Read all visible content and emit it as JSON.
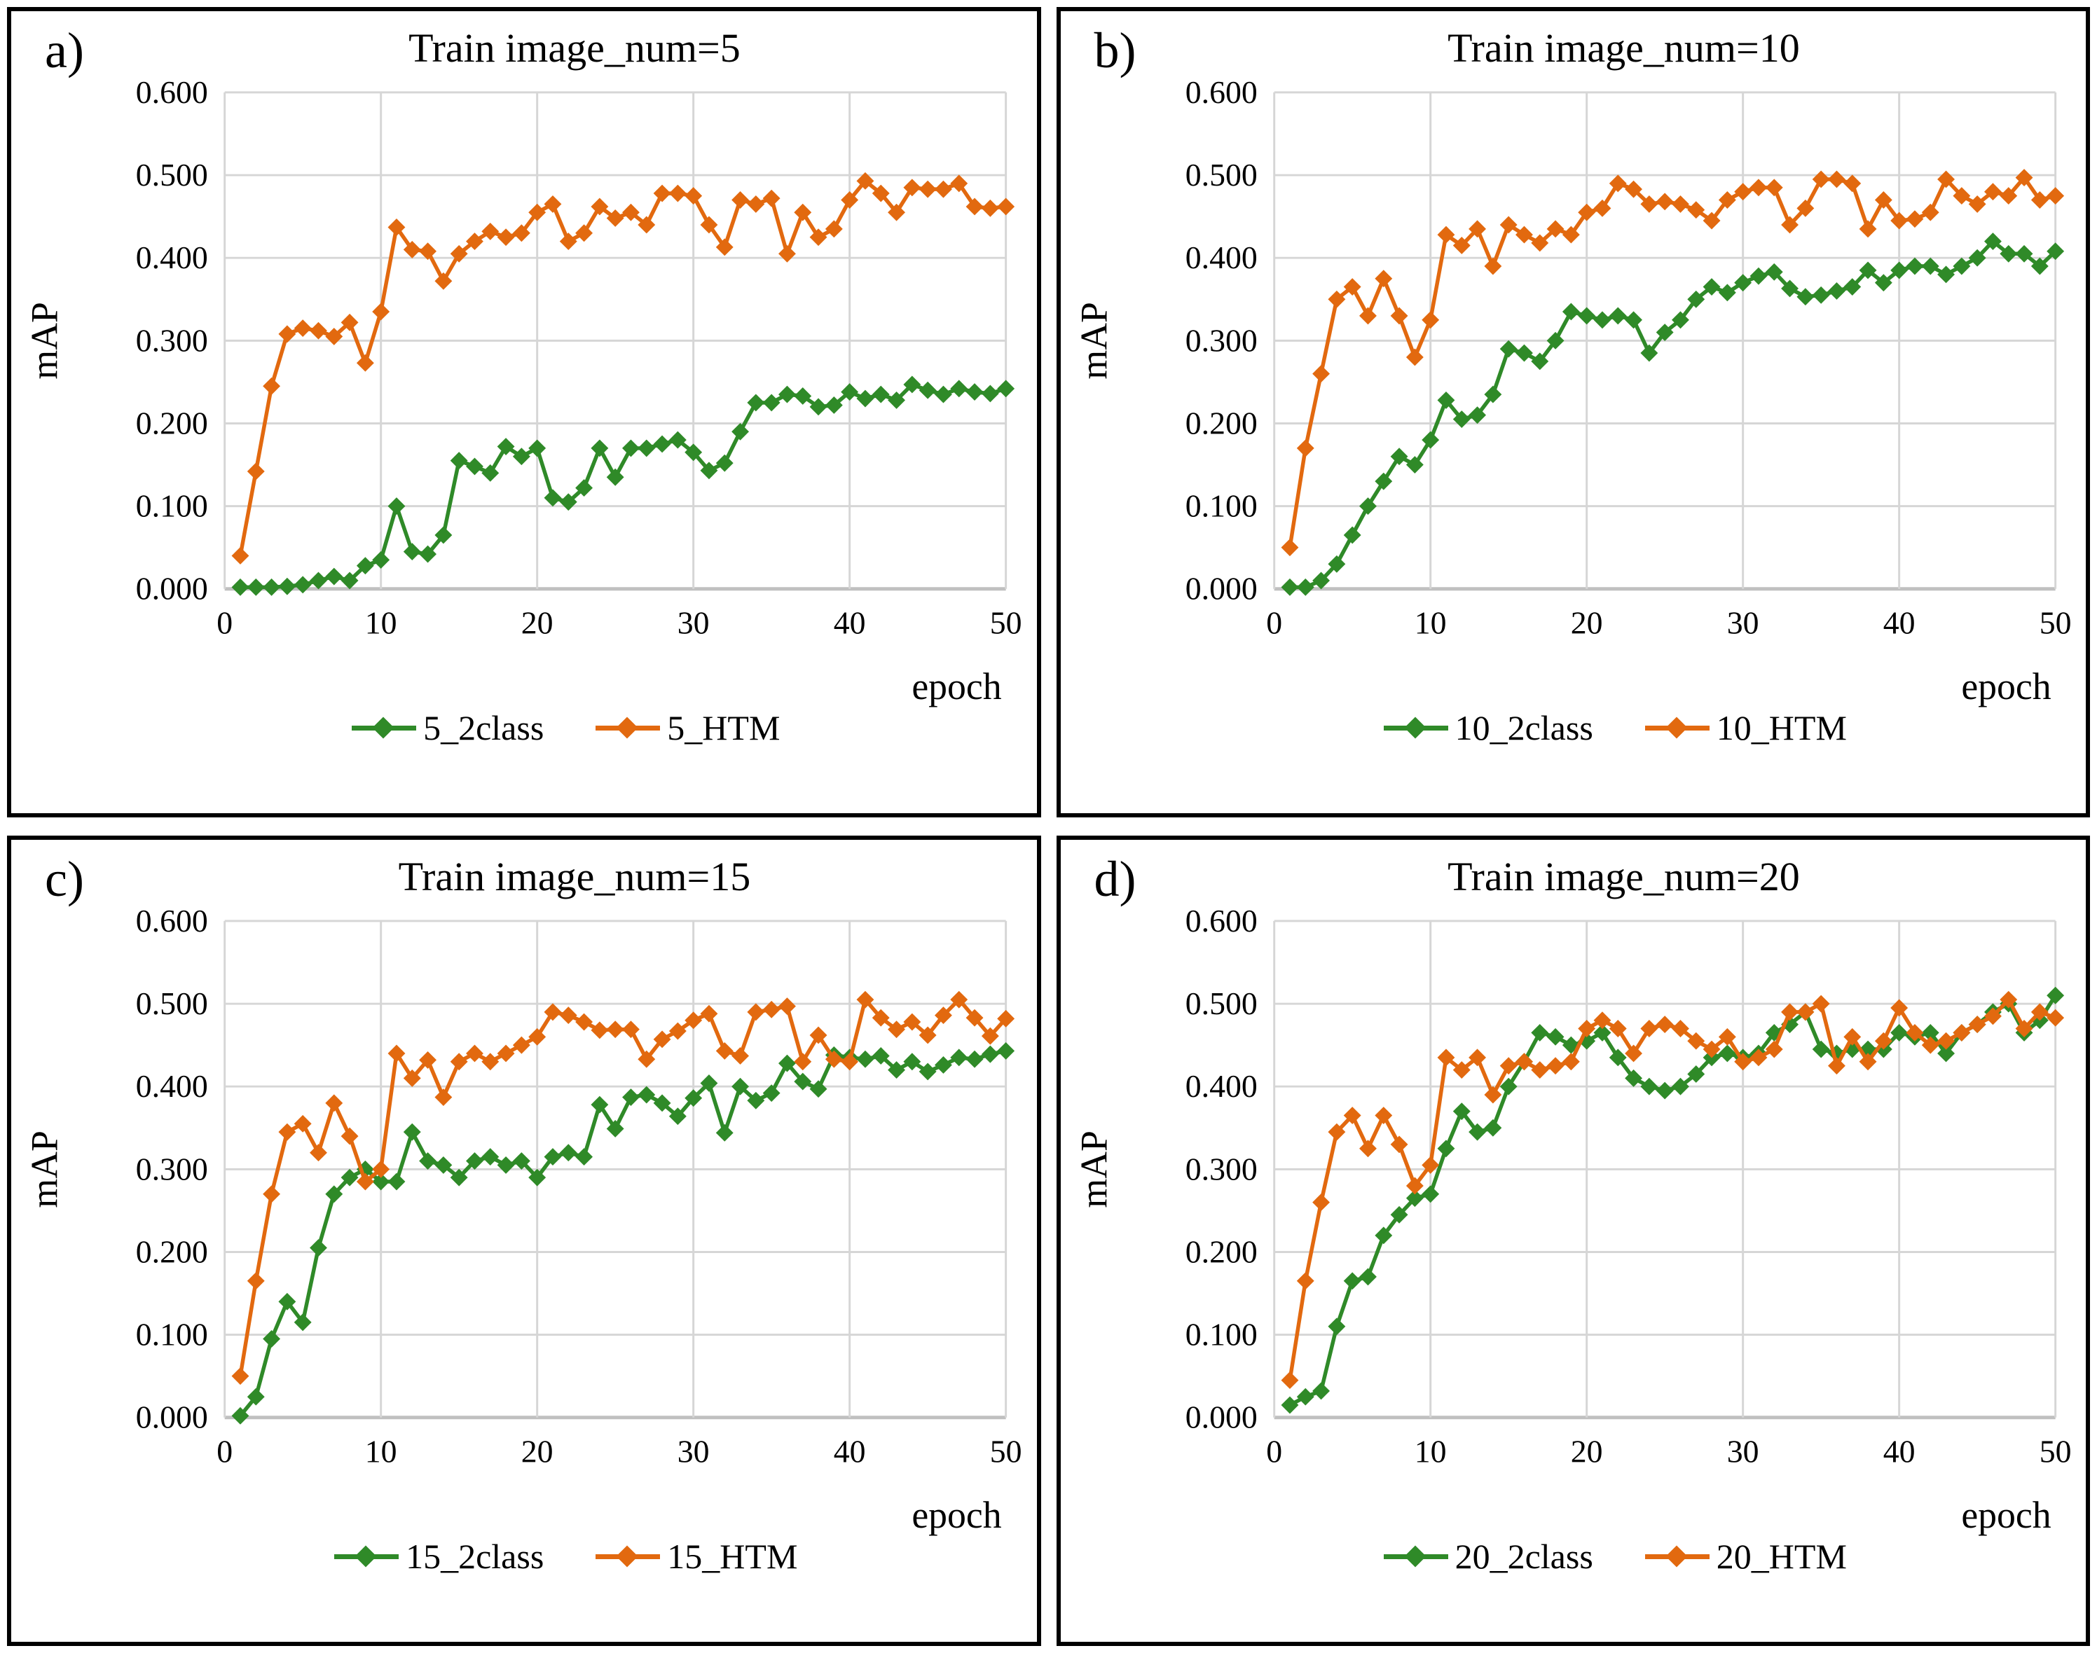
{
  "style": {
    "background": "#FFFFFF",
    "panel_border": "#000000",
    "grid_color": "#D6D6D6",
    "axis_color": "#C0C0C0",
    "text_color": "#000000",
    "green_series": "#2F8A28",
    "orange_series": "#E2690F"
  },
  "chart_data": [
    {
      "id": "a",
      "letter": "a)",
      "title": "Train image_num=5",
      "type": "line",
      "xlabel": "epoch",
      "ylabel": "mAP",
      "xlim": [
        0,
        50
      ],
      "ylim": [
        0,
        0.6
      ],
      "xticks": [
        0,
        10,
        20,
        30,
        40,
        50
      ],
      "yticks": [
        "0.000",
        "0.100",
        "0.200",
        "0.300",
        "0.400",
        "0.500",
        "0.600"
      ],
      "ytick_step": 0.1,
      "x_start": 1,
      "x_step": 1,
      "grid": true,
      "legend_position": "bottom",
      "series": [
        {
          "name": "5_2class",
          "color": "#2F8A28",
          "values": [
            0.002,
            0.002,
            0.002,
            0.003,
            0.005,
            0.01,
            0.015,
            0.01,
            0.028,
            0.035,
            0.1,
            0.045,
            0.042,
            0.065,
            0.155,
            0.148,
            0.14,
            0.172,
            0.16,
            0.17,
            0.11,
            0.105,
            0.122,
            0.17,
            0.135,
            0.17,
            0.17,
            0.175,
            0.18,
            0.165,
            0.143,
            0.152,
            0.19,
            0.225,
            0.225,
            0.235,
            0.233,
            0.22,
            0.222,
            0.238,
            0.23,
            0.235,
            0.228,
            0.247,
            0.24,
            0.235,
            0.242,
            0.238,
            0.236,
            0.242
          ]
        },
        {
          "name": "5_HTM",
          "color": "#E2690F",
          "values": [
            0.04,
            0.142,
            0.245,
            0.308,
            0.315,
            0.312,
            0.305,
            0.322,
            0.273,
            0.335,
            0.437,
            0.41,
            0.408,
            0.372,
            0.405,
            0.42,
            0.432,
            0.425,
            0.43,
            0.455,
            0.465,
            0.42,
            0.43,
            0.462,
            0.448,
            0.455,
            0.44,
            0.478,
            0.478,
            0.475,
            0.44,
            0.413,
            0.47,
            0.465,
            0.472,
            0.405,
            0.455,
            0.425,
            0.435,
            0.47,
            0.493,
            0.478,
            0.455,
            0.485,
            0.483,
            0.483,
            0.49,
            0.462,
            0.46,
            0.462
          ]
        }
      ]
    },
    {
      "id": "b",
      "letter": "b)",
      "title": "Train image_num=10",
      "type": "line",
      "xlabel": "epoch",
      "ylabel": "mAP",
      "xlim": [
        0,
        50
      ],
      "ylim": [
        0,
        0.6
      ],
      "xticks": [
        0,
        10,
        20,
        30,
        40,
        50
      ],
      "yticks": [
        "0.000",
        "0.100",
        "0.200",
        "0.300",
        "0.400",
        "0.500",
        "0.600"
      ],
      "ytick_step": 0.1,
      "x_start": 1,
      "x_step": 1,
      "grid": true,
      "legend_position": "bottom",
      "series": [
        {
          "name": "10_2class",
          "color": "#2F8A28",
          "values": [
            0.002,
            0.002,
            0.01,
            0.03,
            0.065,
            0.1,
            0.13,
            0.16,
            0.15,
            0.18,
            0.228,
            0.205,
            0.21,
            0.235,
            0.29,
            0.285,
            0.275,
            0.3,
            0.335,
            0.33,
            0.325,
            0.33,
            0.325,
            0.285,
            0.31,
            0.325,
            0.35,
            0.365,
            0.358,
            0.37,
            0.378,
            0.383,
            0.363,
            0.353,
            0.355,
            0.36,
            0.365,
            0.385,
            0.37,
            0.385,
            0.39,
            0.39,
            0.38,
            0.39,
            0.4,
            0.42,
            0.405,
            0.405,
            0.39,
            0.408
          ]
        },
        {
          "name": "10_HTM",
          "color": "#E2690F",
          "values": [
            0.05,
            0.17,
            0.26,
            0.35,
            0.365,
            0.33,
            0.375,
            0.33,
            0.28,
            0.325,
            0.428,
            0.415,
            0.435,
            0.39,
            0.44,
            0.428,
            0.418,
            0.435,
            0.428,
            0.455,
            0.46,
            0.49,
            0.483,
            0.465,
            0.468,
            0.465,
            0.458,
            0.445,
            0.47,
            0.48,
            0.485,
            0.485,
            0.44,
            0.46,
            0.495,
            0.495,
            0.49,
            0.435,
            0.47,
            0.445,
            0.447,
            0.455,
            0.495,
            0.475,
            0.465,
            0.48,
            0.475,
            0.497,
            0.47,
            0.475
          ]
        }
      ]
    },
    {
      "id": "c",
      "letter": "c)",
      "title": "Train image_num=15",
      "type": "line",
      "xlabel": "epoch",
      "ylabel": "mAP",
      "xlim": [
        0,
        50
      ],
      "ylim": [
        0,
        0.6
      ],
      "xticks": [
        0,
        10,
        20,
        30,
        40,
        50
      ],
      "yticks": [
        "0.000",
        "0.100",
        "0.200",
        "0.300",
        "0.400",
        "0.500",
        "0.600"
      ],
      "ytick_step": 0.1,
      "x_start": 1,
      "x_step": 1,
      "grid": true,
      "legend_position": "bottom",
      "series": [
        {
          "name": "15_2class",
          "color": "#2F8A28",
          "values": [
            0.002,
            0.025,
            0.095,
            0.14,
            0.115,
            0.205,
            0.27,
            0.29,
            0.3,
            0.285,
            0.285,
            0.345,
            0.31,
            0.305,
            0.29,
            0.31,
            0.315,
            0.305,
            0.31,
            0.29,
            0.315,
            0.32,
            0.315,
            0.378,
            0.349,
            0.387,
            0.39,
            0.38,
            0.364,
            0.386,
            0.404,
            0.344,
            0.4,
            0.383,
            0.392,
            0.428,
            0.406,
            0.397,
            0.438,
            0.435,
            0.433,
            0.437,
            0.42,
            0.43,
            0.418,
            0.426,
            0.435,
            0.433,
            0.439,
            0.443
          ]
        },
        {
          "name": "15_HTM",
          "color": "#E2690F",
          "values": [
            0.05,
            0.165,
            0.27,
            0.345,
            0.355,
            0.32,
            0.38,
            0.34,
            0.285,
            0.3,
            0.44,
            0.41,
            0.432,
            0.387,
            0.43,
            0.44,
            0.43,
            0.44,
            0.45,
            0.46,
            0.49,
            0.486,
            0.478,
            0.468,
            0.469,
            0.469,
            0.433,
            0.457,
            0.467,
            0.48,
            0.488,
            0.443,
            0.437,
            0.49,
            0.493,
            0.497,
            0.43,
            0.462,
            0.433,
            0.43,
            0.505,
            0.483,
            0.469,
            0.478,
            0.462,
            0.486,
            0.505,
            0.483,
            0.461,
            0.482
          ]
        }
      ]
    },
    {
      "id": "d",
      "letter": "d)",
      "title": "Train image_num=20",
      "type": "line",
      "xlabel": "epoch",
      "ylabel": "mAP",
      "xlim": [
        0,
        50
      ],
      "ylim": [
        0,
        0.6
      ],
      "xticks": [
        0,
        10,
        20,
        30,
        40,
        50
      ],
      "yticks": [
        "0.000",
        "0.100",
        "0.200",
        "0.300",
        "0.400",
        "0.500",
        "0.600"
      ],
      "ytick_step": 0.1,
      "x_start": 1,
      "x_step": 1,
      "grid": true,
      "legend_position": "bottom",
      "series": [
        {
          "name": "20_2class",
          "color": "#2F8A28",
          "values": [
            0.015,
            0.025,
            0.032,
            0.11,
            0.165,
            0.17,
            0.22,
            0.245,
            0.265,
            0.27,
            0.325,
            0.37,
            0.345,
            0.35,
            0.4,
            0.43,
            0.465,
            0.46,
            0.45,
            0.455,
            0.465,
            0.435,
            0.41,
            0.4,
            0.395,
            0.4,
            0.415,
            0.435,
            0.44,
            0.435,
            0.44,
            0.465,
            0.475,
            0.49,
            0.445,
            0.44,
            0.445,
            0.445,
            0.445,
            0.465,
            0.46,
            0.465,
            0.44,
            0.465,
            0.475,
            0.49,
            0.5,
            0.465,
            0.48,
            0.51
          ]
        },
        {
          "name": "20_HTM",
          "color": "#E2690F",
          "values": [
            0.045,
            0.165,
            0.26,
            0.345,
            0.365,
            0.325,
            0.365,
            0.33,
            0.28,
            0.305,
            0.435,
            0.42,
            0.435,
            0.39,
            0.425,
            0.43,
            0.42,
            0.425,
            0.43,
            0.47,
            0.48,
            0.47,
            0.44,
            0.47,
            0.475,
            0.47,
            0.455,
            0.445,
            0.46,
            0.43,
            0.435,
            0.445,
            0.49,
            0.49,
            0.5,
            0.425,
            0.46,
            0.43,
            0.455,
            0.495,
            0.465,
            0.45,
            0.455,
            0.465,
            0.475,
            0.485,
            0.505,
            0.47,
            0.49,
            0.483
          ]
        }
      ]
    }
  ]
}
